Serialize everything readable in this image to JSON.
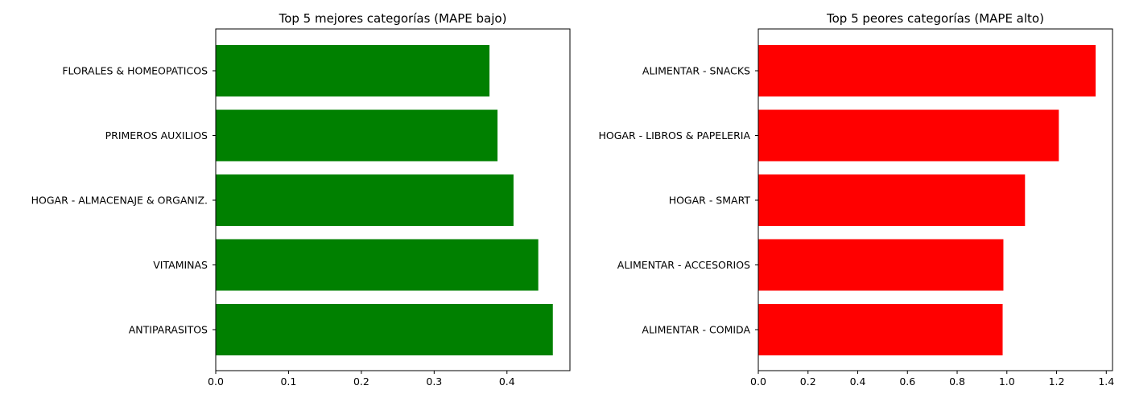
{
  "colors": {
    "best": "#008000",
    "worst": "#ff0000",
    "axis": "#000000",
    "background": "#ffffff"
  },
  "chart_data": [
    {
      "type": "bar",
      "orientation": "horizontal",
      "title": "Top 5 mejores categorías (MAPE bajo)",
      "xlabel": "",
      "ylabel": "",
      "categories": [
        "FLORALES & HOMEOPATICOS",
        "PRIMEROS AUXILIOS",
        "HOGAR - ALMACENAJE & ORGANIZ.",
        "VITAMINAS",
        "ANTIPARASITOS"
      ],
      "values": [
        0.376,
        0.387,
        0.409,
        0.443,
        0.463
      ],
      "xlim": [
        0,
        0.4865
      ],
      "xticks": [
        0.0,
        0.1,
        0.2,
        0.3,
        0.4
      ],
      "xtick_labels": [
        "0.0",
        "0.1",
        "0.2",
        "0.3",
        "0.4"
      ],
      "grid": false,
      "color": "#008000"
    },
    {
      "type": "bar",
      "orientation": "horizontal",
      "title": "Top 5 peores categorías (MAPE alto)",
      "xlabel": "",
      "ylabel": "",
      "categories": [
        "ALIMENTAR - SNACKS",
        "HOGAR - LIBROS & PAPELERIA",
        "HOGAR - SMART",
        "ALIMENTAR - ACCESORIOS",
        "ALIMENTAR - COMIDA"
      ],
      "values": [
        1.357,
        1.209,
        1.073,
        0.986,
        0.983
      ],
      "xlim": [
        0,
        1.425
      ],
      "xticks": [
        0.0,
        0.2,
        0.4,
        0.6,
        0.8,
        1.0,
        1.2,
        1.4
      ],
      "xtick_labels": [
        "0.0",
        "0.2",
        "0.4",
        "0.6",
        "0.8",
        "1.0",
        "1.2",
        "1.4"
      ],
      "grid": false,
      "color": "#ff0000"
    }
  ]
}
